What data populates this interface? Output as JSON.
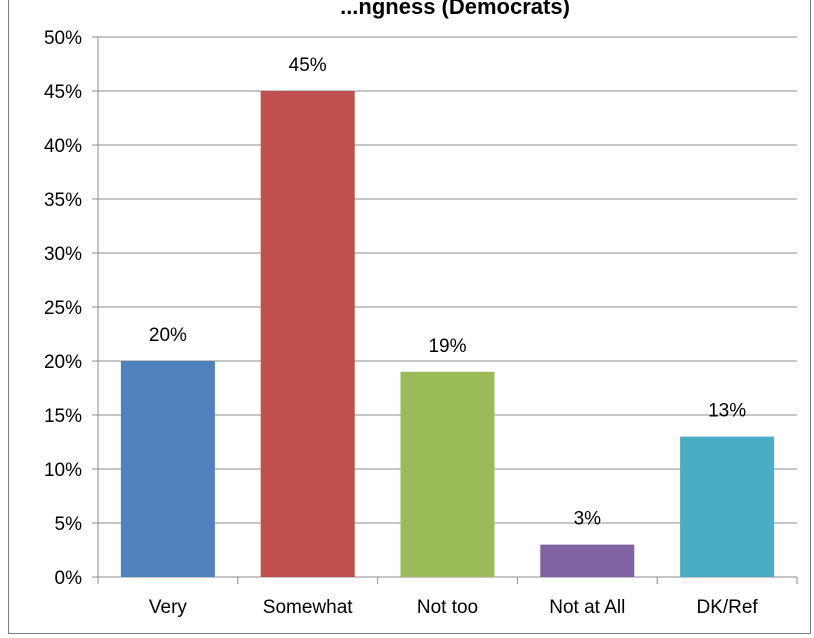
{
  "chart_data": {
    "type": "bar",
    "title": "...ngness (Democrats)",
    "categories": [
      "Very",
      "Somewhat",
      "Not too",
      "Not at All",
      "DK/Ref"
    ],
    "values": [
      20,
      45,
      19,
      3,
      13
    ],
    "value_labels": [
      "20%",
      "45%",
      "19%",
      "3%",
      "13%"
    ],
    "colors": [
      "#4f81bd",
      "#c0504d",
      "#9bbb59",
      "#8064a2",
      "#4bacc6"
    ],
    "yticks": [
      "0%",
      "5%",
      "10%",
      "15%",
      "20%",
      "25%",
      "30%",
      "35%",
      "40%",
      "45%",
      "50%"
    ],
    "ylim": [
      0,
      50
    ],
    "grid": true,
    "legend": "none",
    "xlabel": "",
    "ylabel": ""
  }
}
